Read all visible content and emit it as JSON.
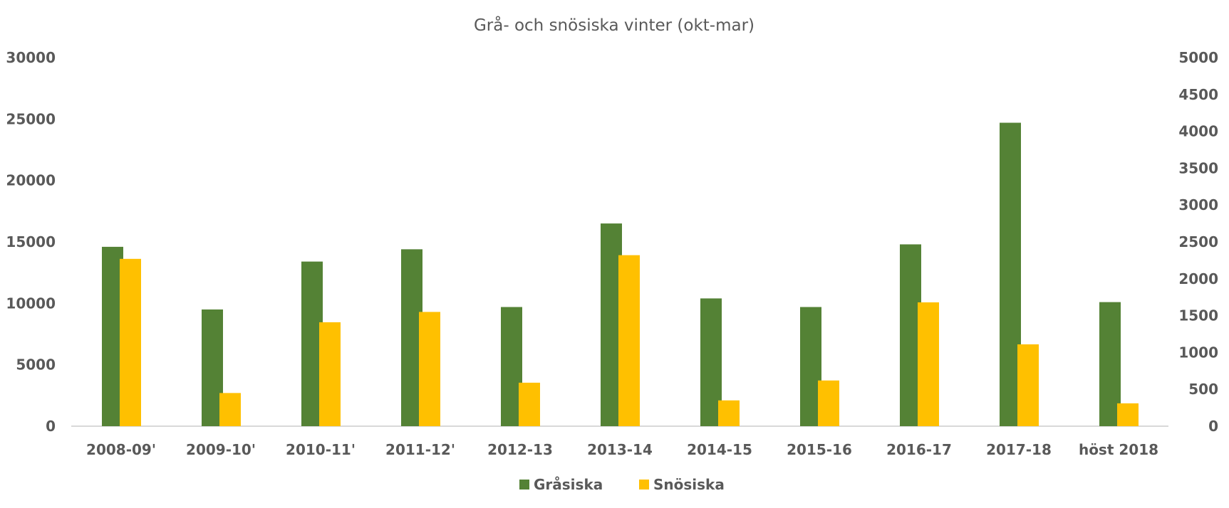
{
  "chart_data": {
    "type": "bar",
    "title": "Grå- och snösiska vinter (okt-mar)",
    "categories": [
      "2008-09'",
      "2009-10'",
      "2010-11'",
      "2011-12'",
      "2012-13",
      "2013-14",
      "2014-15",
      "2015-16",
      "2016-17",
      "2017-18",
      "höst 2018"
    ],
    "series": [
      {
        "name": "Gråsiska",
        "axis": "left",
        "color": "#548235",
        "values": [
          14600,
          9500,
          13400,
          14400,
          9700,
          16500,
          10400,
          9700,
          14800,
          24700,
          10100
        ]
      },
      {
        "name": "Snösiska",
        "axis": "right",
        "color": "#FFC000",
        "values": [
          2270,
          450,
          1410,
          1550,
          590,
          2320,
          350,
          620,
          1680,
          1110,
          310
        ]
      }
    ],
    "y_left": {
      "ylim": [
        0,
        30000
      ],
      "ticks": [
        "0",
        "5000",
        "10000",
        "15000",
        "20000",
        "25000",
        "30000"
      ]
    },
    "y_right": {
      "ylim": [
        0,
        5000
      ],
      "ticks": [
        "0",
        "500",
        "1000",
        "1500",
        "2000",
        "2500",
        "3000",
        "3500",
        "4000",
        "4500",
        "5000"
      ]
    },
    "grid": false,
    "legend_position": "bottom"
  }
}
